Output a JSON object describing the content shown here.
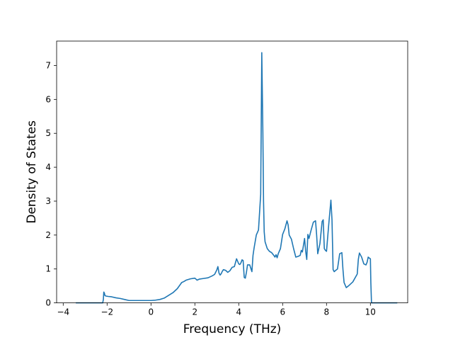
{
  "chart_data": {
    "type": "line",
    "title": "",
    "xlabel": "Frequency (THz)",
    "ylabel": "Density of States",
    "xlim": [
      -4.3,
      11.7
    ],
    "ylim": [
      0,
      7.72
    ],
    "x_ticks": [
      -4,
      -2,
      0,
      2,
      4,
      6,
      8,
      10
    ],
    "x_tick_labels": [
      "−4",
      "−2",
      "0",
      "2",
      "4",
      "6",
      "8",
      "10"
    ],
    "y_ticks": [
      0,
      1,
      2,
      3,
      4,
      5,
      6,
      7
    ],
    "y_tick_labels": [
      "0",
      "1",
      "2",
      "3",
      "4",
      "5",
      "6",
      "7"
    ],
    "grid": false,
    "legend": "none",
    "series": [
      {
        "color": "#1f77b4",
        "x": [
          -3.4,
          -3.0,
          -2.6,
          -2.3,
          -2.2,
          -2.17,
          -2.15,
          -2.12,
          -2.1,
          -2.05,
          -1.95,
          -1.8,
          -1.6,
          -1.4,
          -1.2,
          -1.0,
          -0.8,
          -0.6,
          -0.4,
          -0.2,
          0.0,
          0.2,
          0.4,
          0.6,
          0.8,
          1.0,
          1.2,
          1.4,
          1.5,
          1.6,
          1.8,
          2.0,
          2.05,
          2.1,
          2.2,
          2.4,
          2.6,
          2.8,
          2.9,
          3.0,
          3.05,
          3.1,
          3.15,
          3.2,
          3.25,
          3.3,
          3.4,
          3.5,
          3.6,
          3.7,
          3.8,
          3.9,
          4.0,
          4.05,
          4.1,
          4.15,
          4.2,
          4.25,
          4.3,
          4.35,
          4.4,
          4.5,
          4.6,
          4.65,
          4.7,
          4.8,
          4.9,
          5.0,
          5.05,
          5.1,
          5.13,
          5.16,
          5.2,
          5.3,
          5.4,
          5.5,
          5.6,
          5.65,
          5.7,
          5.75,
          5.8,
          5.9,
          6.0,
          6.1,
          6.2,
          6.25,
          6.3,
          6.4,
          6.5,
          6.6,
          6.7,
          6.8,
          6.85,
          6.9,
          7.0,
          7.05,
          7.1,
          7.15,
          7.2,
          7.3,
          7.4,
          7.5,
          7.55,
          7.6,
          7.65,
          7.7,
          7.8,
          7.85,
          7.9,
          7.95,
          8.0,
          8.1,
          8.2,
          8.25,
          8.3,
          8.35,
          8.4,
          8.5,
          8.6,
          8.7,
          8.75,
          8.8,
          8.9,
          9.0,
          9.2,
          9.4,
          9.45,
          9.5,
          9.6,
          9.7,
          9.8,
          9.85,
          9.9,
          9.95,
          10.0,
          10.02,
          10.05,
          10.3,
          10.6,
          10.9,
          11.2
        ],
        "y": [
          0.0,
          0.0,
          0.0,
          0.0,
          0.0,
          0.1,
          0.32,
          0.28,
          0.22,
          0.2,
          0.19,
          0.18,
          0.15,
          0.13,
          0.1,
          0.07,
          0.07,
          0.07,
          0.07,
          0.07,
          0.07,
          0.08,
          0.1,
          0.14,
          0.22,
          0.3,
          0.42,
          0.6,
          0.63,
          0.67,
          0.71,
          0.73,
          0.7,
          0.67,
          0.7,
          0.72,
          0.74,
          0.8,
          0.84,
          0.97,
          1.07,
          0.88,
          0.82,
          0.86,
          0.93,
          0.98,
          0.96,
          0.9,
          0.95,
          1.05,
          1.07,
          1.3,
          1.15,
          1.13,
          1.18,
          1.27,
          1.25,
          0.75,
          0.73,
          0.9,
          1.12,
          1.12,
          0.92,
          1.4,
          1.62,
          2.0,
          2.15,
          3.2,
          7.38,
          5.0,
          3.0,
          2.1,
          1.8,
          1.6,
          1.52,
          1.48,
          1.4,
          1.35,
          1.42,
          1.33,
          1.45,
          1.6,
          2.02,
          2.18,
          2.42,
          2.3,
          2.0,
          1.88,
          1.6,
          1.35,
          1.37,
          1.4,
          1.55,
          1.5,
          1.9,
          1.52,
          1.28,
          2.02,
          1.9,
          2.15,
          2.38,
          2.42,
          2.0,
          1.45,
          1.6,
          1.75,
          2.4,
          2.45,
          1.6,
          1.55,
          1.52,
          2.3,
          3.03,
          2.45,
          0.98,
          0.92,
          0.95,
          1.0,
          1.45,
          1.48,
          0.98,
          0.6,
          0.45,
          0.5,
          0.62,
          0.85,
          1.28,
          1.47,
          1.35,
          1.15,
          1.12,
          1.2,
          1.35,
          1.32,
          1.3,
          0.6,
          0.0,
          0.0,
          0.0,
          0.0,
          0.0
        ]
      }
    ]
  }
}
